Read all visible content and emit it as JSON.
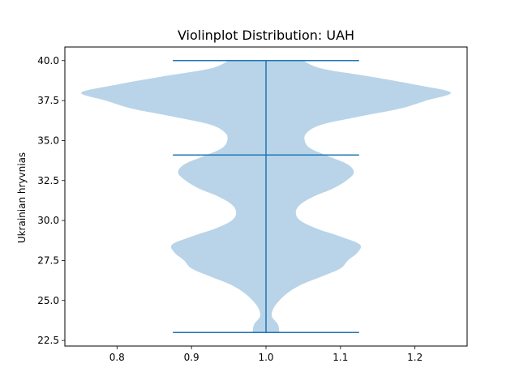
{
  "chart_data": {
    "type": "violin",
    "title": "Violinplot Distribution: UAH",
    "xlabel": "",
    "ylabel": "Ukrainian hryvnias",
    "xlim": [
      0.73,
      1.27
    ],
    "ylim": [
      22.15,
      40.85
    ],
    "x_ticks": [
      0.8,
      0.9,
      1.0,
      1.1,
      1.2
    ],
    "x_tick_labels": [
      "0.8",
      "0.9",
      "1.0",
      "1.1",
      "1.2"
    ],
    "y_ticks": [
      22.5,
      25.0,
      27.5,
      30.0,
      32.5,
      35.0,
      37.5,
      40.0
    ],
    "y_tick_labels": [
      "22.5",
      "25.0",
      "27.5",
      "30.0",
      "32.5",
      "35.0",
      "37.5",
      "40.0"
    ],
    "grid": false,
    "violin": {
      "position": 1.0,
      "min": 23.0,
      "max": 40.0,
      "median": 34.1,
      "cap_half_width": 0.125,
      "fill_color": "#b9d4e8",
      "line_color": "#1f77b4",
      "density_profile": {
        "y": [
          23.0,
          23.5,
          24.0,
          24.5,
          25.0,
          25.5,
          26.0,
          26.5,
          27.0,
          27.5,
          28.0,
          28.5,
          29.0,
          29.5,
          30.0,
          30.5,
          31.0,
          31.5,
          32.0,
          32.5,
          33.0,
          33.5,
          34.0,
          34.5,
          35.0,
          35.5,
          36.0,
          36.5,
          37.0,
          37.5,
          38.0,
          38.5,
          39.0,
          39.5,
          40.0
        ],
        "half_width": [
          0.018,
          0.016,
          0.008,
          0.01,
          0.018,
          0.03,
          0.048,
          0.075,
          0.1,
          0.11,
          0.123,
          0.126,
          0.1,
          0.068,
          0.046,
          0.04,
          0.046,
          0.064,
          0.09,
          0.108,
          0.118,
          0.11,
          0.085,
          0.06,
          0.052,
          0.055,
          0.075,
          0.125,
          0.18,
          0.215,
          0.248,
          0.2,
          0.14,
          0.075,
          0.05
        ]
      }
    }
  }
}
